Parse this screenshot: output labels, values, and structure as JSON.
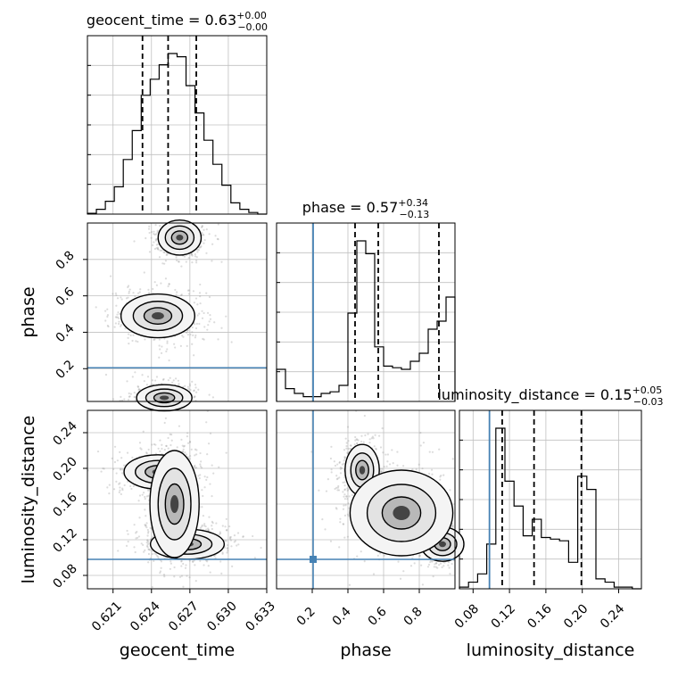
{
  "chart_data": {
    "type": "corner",
    "parameters": [
      "geocent_time",
      "phase",
      "luminosity_distance"
    ],
    "truths": {
      "phase": 0.205,
      "luminosity_distance": 0.098
    },
    "colors": {
      "truth": "#4682b4",
      "hist": "#000000",
      "grid": "#c0c0c0",
      "contour": "#000000"
    },
    "grid": true,
    "marginals": [
      {
        "param": "geocent_time",
        "title": {
          "base": "geocent_time = 0.63",
          "sup": "+0.00",
          "sub": "−0.00"
        },
        "xlim": [
          0.619,
          0.633
        ],
        "quantiles": [
          0.6233,
          0.6253,
          0.6275
        ],
        "bin_edges": [
          0.619,
          0.6197,
          0.6204,
          0.6211,
          0.6218,
          0.6225,
          0.6232,
          0.6239,
          0.6246,
          0.6253,
          0.626,
          0.6267,
          0.6274,
          0.6281,
          0.6288,
          0.6295,
          0.6302,
          0.6309,
          0.6316,
          0.6323,
          0.633
        ],
        "counts": [
          0.005,
          0.03,
          0.08,
          0.17,
          0.34,
          0.52,
          0.74,
          0.84,
          0.93,
          1.0,
          0.98,
          0.8,
          0.63,
          0.46,
          0.31,
          0.18,
          0.07,
          0.03,
          0.01,
          0.0
        ]
      },
      {
        "param": "phase",
        "title": {
          "base": "phase = 0.57",
          "sup": "+0.34",
          "sub": "−0.13"
        },
        "xlim": [
          0.0,
          1.0
        ],
        "quantiles": [
          0.44,
          0.57,
          0.91
        ],
        "bin_edges": [
          0.0,
          0.05,
          0.1,
          0.15,
          0.2,
          0.25,
          0.3,
          0.35,
          0.4,
          0.45,
          0.5,
          0.55,
          0.6,
          0.65,
          0.7,
          0.75,
          0.8,
          0.85,
          0.9,
          0.95,
          1.0
        ],
        "counts": [
          0.2,
          0.08,
          0.05,
          0.03,
          0.03,
          0.05,
          0.06,
          0.1,
          0.55,
          1.0,
          0.92,
          0.34,
          0.22,
          0.21,
          0.2,
          0.25,
          0.3,
          0.45,
          0.5,
          0.65
        ]
      },
      {
        "param": "luminosity_distance",
        "title": {
          "base": "luminosity_distance = 0.15",
          "sup": "+0.05",
          "sub": "−0.03"
        },
        "xlim": [
          0.065,
          0.265
        ],
        "quantiles": [
          0.112,
          0.147,
          0.199
        ],
        "bin_edges": [
          0.065,
          0.075,
          0.085,
          0.095,
          0.105,
          0.115,
          0.125,
          0.135,
          0.145,
          0.155,
          0.165,
          0.175,
          0.185,
          0.195,
          0.205,
          0.215,
          0.225,
          0.235,
          0.245,
          0.255,
          0.265
        ],
        "counts": [
          0.01,
          0.04,
          0.09,
          0.27,
          0.97,
          0.65,
          0.5,
          0.32,
          0.42,
          0.31,
          0.3,
          0.29,
          0.16,
          0.68,
          0.6,
          0.06,
          0.04,
          0.01,
          0.01,
          0.0
        ]
      }
    ],
    "joints": [
      {
        "x": "geocent_time",
        "y": "phase",
        "ylim": [
          0.02,
          1.0
        ],
        "modes": [
          {
            "x": 0.6245,
            "y": 0.49,
            "sx": 0.0012,
            "sy": 0.05
          },
          {
            "x": 0.6262,
            "y": 0.92,
            "sx": 0.0007,
            "sy": 0.04
          },
          {
            "x": 0.625,
            "y": 0.04,
            "sx": 0.0009,
            "sy": 0.03
          }
        ]
      },
      {
        "x": "geocent_time",
        "y": "luminosity_distance",
        "ylim": [
          0.065,
          0.265
        ],
        "modes": [
          {
            "x": 0.6245,
            "y": 0.196,
            "sx": 0.0011,
            "sy": 0.008
          },
          {
            "x": 0.6268,
            "y": 0.115,
            "sx": 0.0012,
            "sy": 0.007
          },
          {
            "x": 0.6258,
            "y": 0.16,
            "sx": 0.0008,
            "sy": 0.025
          }
        ]
      },
      {
        "x": "phase",
        "y": "luminosity_distance",
        "ylim": [
          0.065,
          0.265
        ],
        "modes": [
          {
            "x": 0.48,
            "y": 0.198,
            "sx": 0.04,
            "sy": 0.012
          },
          {
            "x": 0.93,
            "y": 0.115,
            "sx": 0.05,
            "sy": 0.008
          },
          {
            "x": 0.7,
            "y": 0.15,
            "sx": 0.12,
            "sy": 0.02
          }
        ]
      }
    ],
    "x_ticks": {
      "geocent_time": [
        0.621,
        0.624,
        0.627,
        0.63,
        0.633
      ],
      "phase": [
        0.2,
        0.4,
        0.6,
        0.8
      ],
      "luminosity_distance": [
        0.08,
        0.12,
        0.16,
        0.2,
        0.24
      ]
    },
    "x_tick_labels": {
      "geocent_time": [
        "0.621",
        "0.624",
        "0.627",
        "0.630",
        "0.633"
      ],
      "phase": [
        "0.2",
        "0.4",
        "0.6",
        "0.8"
      ],
      "luminosity_distance": [
        "0.08",
        "0.12",
        "0.16",
        "0.20",
        "0.24"
      ]
    },
    "y_ticks": {
      "phase": [
        0.2,
        0.4,
        0.6,
        0.8
      ],
      "luminosity_distance": [
        0.08,
        0.12,
        0.16,
        0.2,
        0.24
      ]
    },
    "y_tick_labels": {
      "phase": [
        "0.2",
        "0.4",
        "0.6",
        "0.8"
      ],
      "luminosity_distance": [
        "0.08",
        "0.12",
        "0.16",
        "0.20",
        "0.24"
      ]
    },
    "xlabels": [
      "geocent_time",
      "phase",
      "luminosity_distance"
    ],
    "ylabels": [
      "phase",
      "luminosity_distance"
    ]
  }
}
